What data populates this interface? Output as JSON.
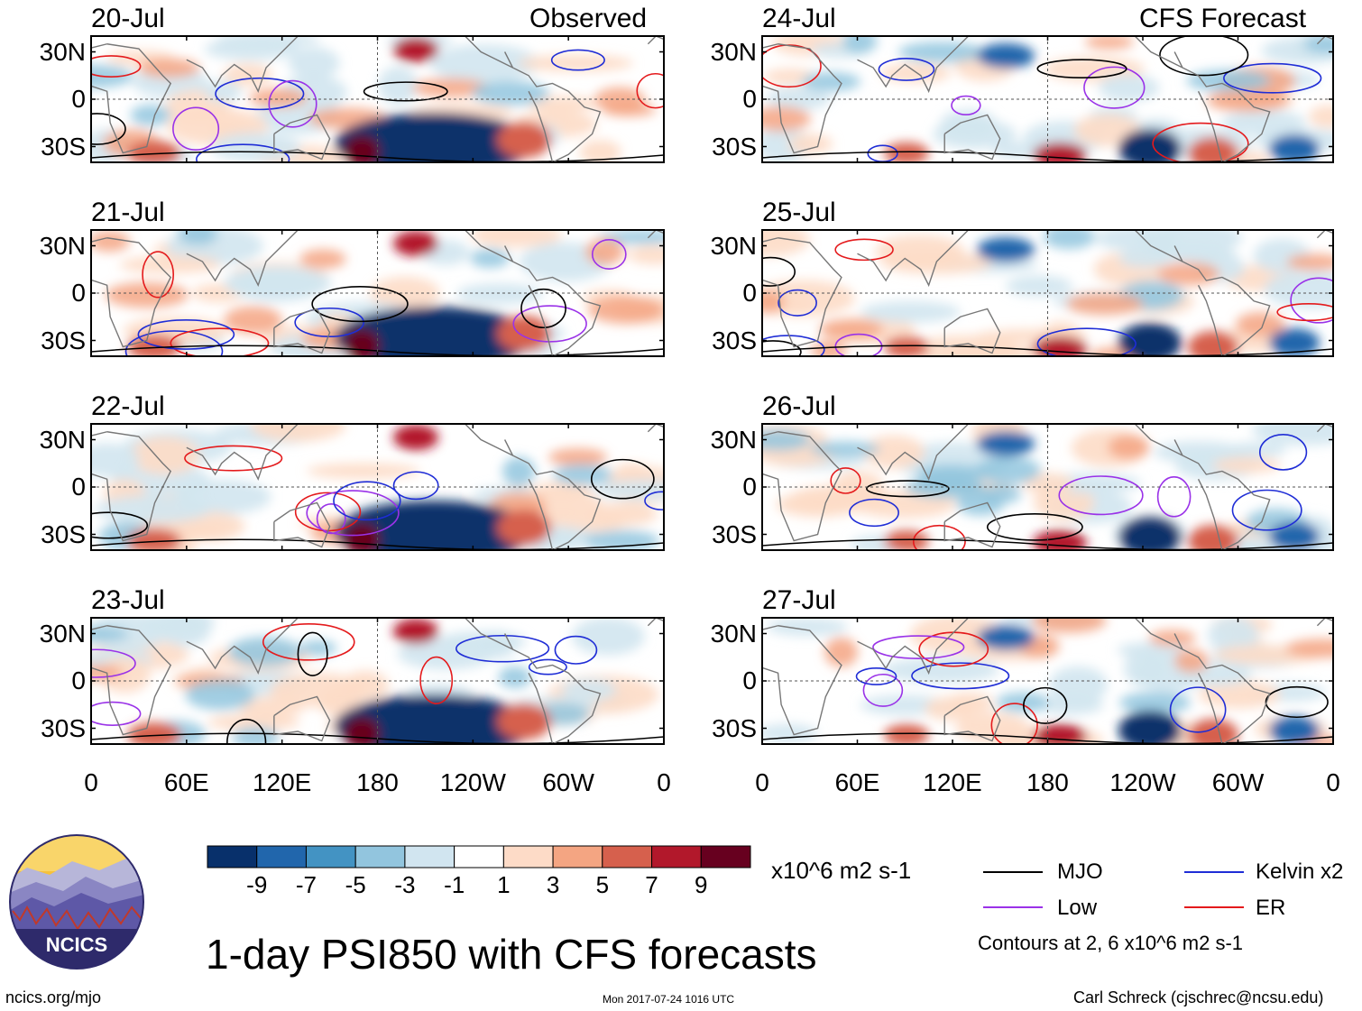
{
  "observed_label": "Observed",
  "forecast_label": "CFS Forecast",
  "observed_dates": [
    "20-Jul",
    "21-Jul",
    "22-Jul",
    "23-Jul"
  ],
  "forecast_dates": [
    "24-Jul",
    "25-Jul",
    "26-Jul",
    "27-Jul"
  ],
  "lat_labels": [
    "30N",
    "0",
    "30S"
  ],
  "lon_labels": [
    "0",
    "60E",
    "120E",
    "180",
    "120W",
    "60W",
    "0"
  ],
  "colorbar": {
    "ticks": [
      "-9",
      "-7",
      "-5",
      "-3",
      "-1",
      "1",
      "3",
      "5",
      "7",
      "9"
    ],
    "colors": [
      "#08306b",
      "#2166ac",
      "#4393c3",
      "#92c5de",
      "#d1e5f0",
      "#ffffff",
      "#fddbc7",
      "#f4a582",
      "#d6604d",
      "#b2182b",
      "#67001f"
    ],
    "units": "x10^6 m2 s-1"
  },
  "legend": {
    "items": [
      {
        "label": "MJO",
        "color": "#000000"
      },
      {
        "label": "Kelvin x2",
        "color": "#1f2dd6"
      },
      {
        "label": "Low",
        "color": "#9a32e8"
      },
      {
        "label": "ER",
        "color": "#e41a1c"
      }
    ],
    "note": "Contours at 2, 6 x10^6 m2 s-1"
  },
  "title": "1-day PSI850 with CFS forecasts",
  "logo_text": "NCICS",
  "footer": {
    "left": "ncics.org/mjo",
    "center": "Mon 2017-07-24 1016 UTC",
    "right": "Carl Schreck (cjschrec@ncsu.edu)"
  }
}
